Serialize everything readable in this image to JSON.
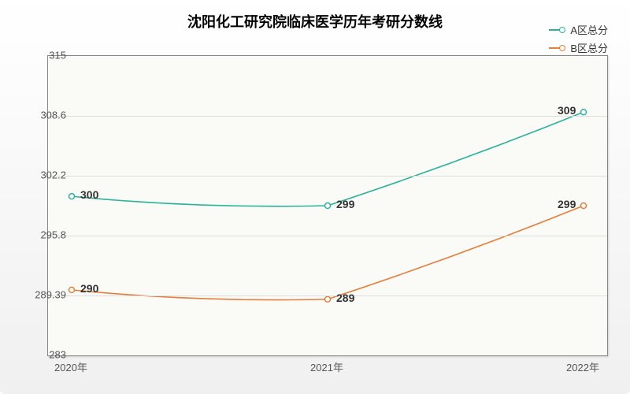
{
  "chart": {
    "type": "line",
    "title": "沈阳化工研究院临床医学历年考研分数线",
    "title_fontsize": 18,
    "background_gradient": [
      "#ffffff",
      "#f0f0f0"
    ],
    "plot_background": "#fafaf7",
    "border_color": "#888888",
    "grid_color": "#dddddd",
    "legend": {
      "position": "top-right",
      "fontsize": 13,
      "items": [
        {
          "label": "A区总分",
          "color": "#2bb39a"
        },
        {
          "label": "B区总分",
          "color": "#e67e3b"
        }
      ]
    },
    "x": {
      "categories": [
        "2020年",
        "2021年",
        "2022年"
      ],
      "fontsize": 13
    },
    "y": {
      "min": 283,
      "max": 315,
      "ticks": [
        283,
        289.39,
        295.8,
        302.2,
        308.6,
        315
      ],
      "fontsize": 13
    },
    "series": [
      {
        "name": "A区总分",
        "color": "#2bb39a",
        "line_width": 1.6,
        "marker": "circle-open",
        "values": [
          300,
          299,
          309
        ],
        "labels": [
          "300",
          "299",
          "309"
        ],
        "label_fontsize": 14
      },
      {
        "name": "B区总分",
        "color": "#e67e3b",
        "line_width": 1.6,
        "marker": "circle-open",
        "values": [
          290,
          289,
          299
        ],
        "labels": [
          "290",
          "289",
          "299"
        ],
        "label_fontsize": 14
      }
    ]
  }
}
